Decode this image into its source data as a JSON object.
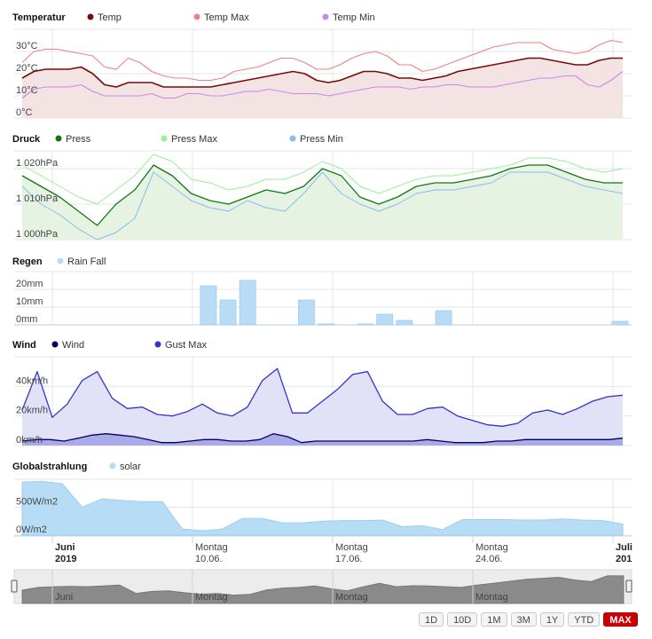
{
  "colors": {
    "temp": "#7a0a0a",
    "temp_max": "#f08080",
    "temp_min": "#c88ae8",
    "temp_fill": "#f3e3e3",
    "press": "#117711",
    "press_max": "#99ee99",
    "press_min": "#88bbee",
    "press_fill": "#e6f3e3",
    "rain": "#b8dcf5",
    "rain_stroke": "#8ec4ee",
    "wind": "#000066",
    "gust": "#3333cc",
    "wind_fill": "#e1e1f8",
    "wind_fill2": "#aaaae8",
    "solar": "#b6dcf6",
    "solar_stroke": "#9ccfee",
    "grid": "#e6e6e6",
    "nav_bg": "#ececec",
    "nav_area": "#8a8a8a",
    "active_button": "#cc0000"
  },
  "chart_data": [
    {
      "type": "line",
      "title": "Temperatur",
      "ylim": [
        0,
        40
      ],
      "yticks": [
        "0°C",
        "10°C",
        "20°C",
        "30°C"
      ],
      "ytick_values": [
        0,
        10,
        20,
        30
      ],
      "series": [
        {
          "name": "Temp",
          "values": [
            18,
            21,
            22,
            22,
            22,
            23,
            20,
            15,
            14,
            16,
            16,
            16,
            14,
            14,
            14,
            14,
            14,
            15,
            16,
            17,
            18,
            19,
            20,
            21,
            20,
            17,
            16,
            17,
            19,
            21,
            21,
            20,
            18,
            18,
            17,
            18,
            19,
            21,
            22,
            23,
            24,
            25,
            26,
            27,
            27,
            26,
            25,
            24,
            24,
            26,
            27,
            27
          ]
        },
        {
          "name": "Temp Max",
          "values": [
            25,
            30,
            31,
            31,
            30,
            29,
            28,
            23,
            22,
            27,
            25,
            21,
            19,
            18,
            18,
            17,
            17,
            18,
            21,
            22,
            23,
            25,
            27,
            27,
            25,
            22,
            22,
            24,
            27,
            29,
            30,
            28,
            24,
            24,
            21,
            22,
            24,
            26,
            28,
            30,
            32,
            33,
            34,
            34,
            34,
            31,
            30,
            29,
            30,
            33,
            35,
            34
          ]
        },
        {
          "name": "Temp Min",
          "values": [
            9,
            13,
            14,
            14,
            14,
            15,
            12,
            10,
            10,
            10,
            10,
            11,
            9,
            9,
            11,
            11,
            10,
            10,
            11,
            12,
            12,
            13,
            12,
            11,
            11,
            11,
            10,
            11,
            12,
            13,
            14,
            14,
            14,
            13,
            14,
            14,
            15,
            15,
            14,
            14,
            14,
            15,
            16,
            17,
            18,
            18,
            19,
            19,
            15,
            14,
            17,
            21
          ]
        }
      ]
    },
    {
      "type": "line",
      "title": "Druck",
      "ylim": [
        1000,
        1025
      ],
      "yticks": [
        "1 000hPa",
        "1 010hPa",
        "1 020hPa"
      ],
      "ytick_values": [
        1000,
        1010,
        1020
      ],
      "series": [
        {
          "name": "Press",
          "values": [
            1018,
            1015,
            1012,
            1008,
            1004,
            1010,
            1014,
            1021,
            1018,
            1013,
            1011,
            1010,
            1012,
            1014,
            1013,
            1015,
            1020,
            1018,
            1012,
            1010,
            1012,
            1015,
            1016,
            1016,
            1017,
            1018,
            1020,
            1021,
            1021,
            1019,
            1017,
            1016,
            1016
          ]
        },
        {
          "name": "Press Max",
          "values": [
            1021,
            1018,
            1015,
            1012,
            1010,
            1014,
            1018,
            1024,
            1022,
            1017,
            1016,
            1014,
            1015,
            1017,
            1017,
            1019,
            1022,
            1020,
            1015,
            1013,
            1015,
            1017,
            1018,
            1018,
            1019,
            1020,
            1021,
            1023,
            1023,
            1022,
            1020,
            1019,
            1020
          ]
        },
        {
          "name": "Press Min",
          "values": [
            1015,
            1010,
            1007,
            1003,
            1000,
            1002,
            1006,
            1019,
            1015,
            1011,
            1009,
            1008,
            1011,
            1009,
            1008,
            1013,
            1019,
            1013,
            1010,
            1008,
            1010,
            1013,
            1014,
            1014,
            1015,
            1016,
            1019,
            1019,
            1019,
            1017,
            1015,
            1014,
            1013
          ]
        }
      ]
    },
    {
      "type": "bar",
      "title": "Regen",
      "ylim": [
        0,
        30
      ],
      "yticks": [
        "0mm",
        "10mm",
        "20mm"
      ],
      "ytick_values": [
        0,
        10,
        20
      ],
      "series": [
        {
          "name": "Rain Fall",
          "x": [
            9,
            10,
            11,
            14,
            15,
            17,
            18,
            19,
            21,
            30
          ],
          "values": [
            22,
            14,
            25,
            14,
            0.5,
            0.5,
            6,
            2.5,
            8,
            2
          ]
        }
      ]
    },
    {
      "type": "area",
      "title": "Wind",
      "ylim": [
        0,
        60
      ],
      "yticks": [
        "0km/h",
        "20km/h",
        "40km/h"
      ],
      "ytick_values": [
        0,
        20,
        40
      ],
      "series": [
        {
          "name": "Wind",
          "values": [
            3,
            4,
            4,
            3,
            5,
            7,
            8,
            7,
            6,
            4,
            2,
            2,
            3,
            4,
            4,
            3,
            3,
            4,
            8,
            6,
            2,
            3,
            3,
            3,
            3,
            3,
            3,
            3,
            3,
            4,
            3,
            2,
            2,
            2,
            3,
            3,
            4,
            4,
            4,
            4,
            4,
            4,
            4,
            5
          ]
        },
        {
          "name": "Gust Max",
          "values": [
            24,
            50,
            19,
            28,
            44,
            50,
            32,
            25,
            26,
            21,
            20,
            23,
            28,
            22,
            20,
            26,
            44,
            52,
            22,
            22,
            30,
            38,
            48,
            50,
            30,
            21,
            21,
            25,
            26,
            20,
            17,
            14,
            13,
            15,
            22,
            24,
            21,
            25,
            30,
            33,
            34
          ]
        }
      ]
    },
    {
      "type": "area",
      "title": "Globalstrahlung",
      "ylim": [
        0,
        1000
      ],
      "yticks": [
        "0W/m2",
        "500W/m2"
      ],
      "ytick_values": [
        0,
        500
      ],
      "series": [
        {
          "name": "solar",
          "values": [
            950,
            960,
            920,
            500,
            650,
            620,
            600,
            600,
            110,
            80,
            110,
            300,
            300,
            220,
            220,
            250,
            260,
            260,
            270,
            150,
            170,
            100,
            280,
            280,
            280,
            270,
            270,
            290,
            270,
            260,
            200
          ]
        }
      ]
    }
  ],
  "xaxis": {
    "labels": [
      {
        "line1": "Juni",
        "line2": "2019",
        "bold": true
      },
      {
        "line1": "Montag",
        "line2": "10.06.",
        "bold": false
      },
      {
        "line1": "Montag",
        "line2": "17.06.",
        "bold": false
      },
      {
        "line1": "Montag",
        "line2": "24.06.",
        "bold": false
      },
      {
        "line1": "Juli",
        "line2": "201",
        "bold": true
      }
    ]
  },
  "navigator": {
    "labels": [
      "Juni",
      "Montag",
      "Montag",
      "Montag"
    ],
    "values": [
      40,
      48,
      50,
      51,
      50,
      52,
      55,
      30,
      36,
      38,
      32,
      28,
      30,
      25,
      27,
      40,
      46,
      48,
      52,
      44,
      38,
      50,
      60,
      50,
      53,
      52,
      50,
      48,
      55,
      60,
      66,
      72,
      75,
      78,
      70,
      65,
      82,
      82
    ]
  },
  "range_buttons": [
    "1D",
    "10D",
    "1M",
    "3M",
    "1Y",
    "YTD",
    "MAX"
  ],
  "active_range": "MAX"
}
